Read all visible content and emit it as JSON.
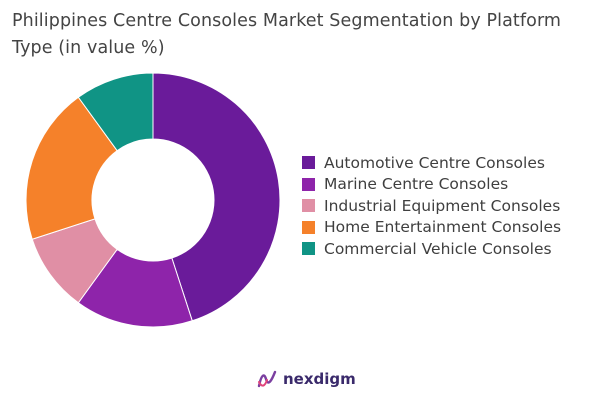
{
  "chart_data": {
    "type": "pie",
    "title": "Philippines Centre Consoles Market Segmentation by Platform Type (in value %)",
    "donut": true,
    "legend_position": "right",
    "start_angle_deg": 0,
    "direction": "clockwise",
    "slices": [
      {
        "label": "Automotive Centre Consoles",
        "value": 45,
        "color": "#6a1b9a"
      },
      {
        "label": "Marine Centre Consoles",
        "value": 15,
        "color": "#8e24aa"
      },
      {
        "label": "Industrial Equipment Consoles",
        "value": 10,
        "color": "#e08fa5"
      },
      {
        "label": "Home Entertainment Consoles",
        "value": 20,
        "color": "#f5812a"
      },
      {
        "label": "Commercial Vehicle Consoles",
        "value": 10,
        "color": "#109485"
      }
    ]
  },
  "brand": {
    "name": "nexdigm",
    "icon": "nexdigm-logo-icon",
    "color": "#3a2a6b"
  }
}
